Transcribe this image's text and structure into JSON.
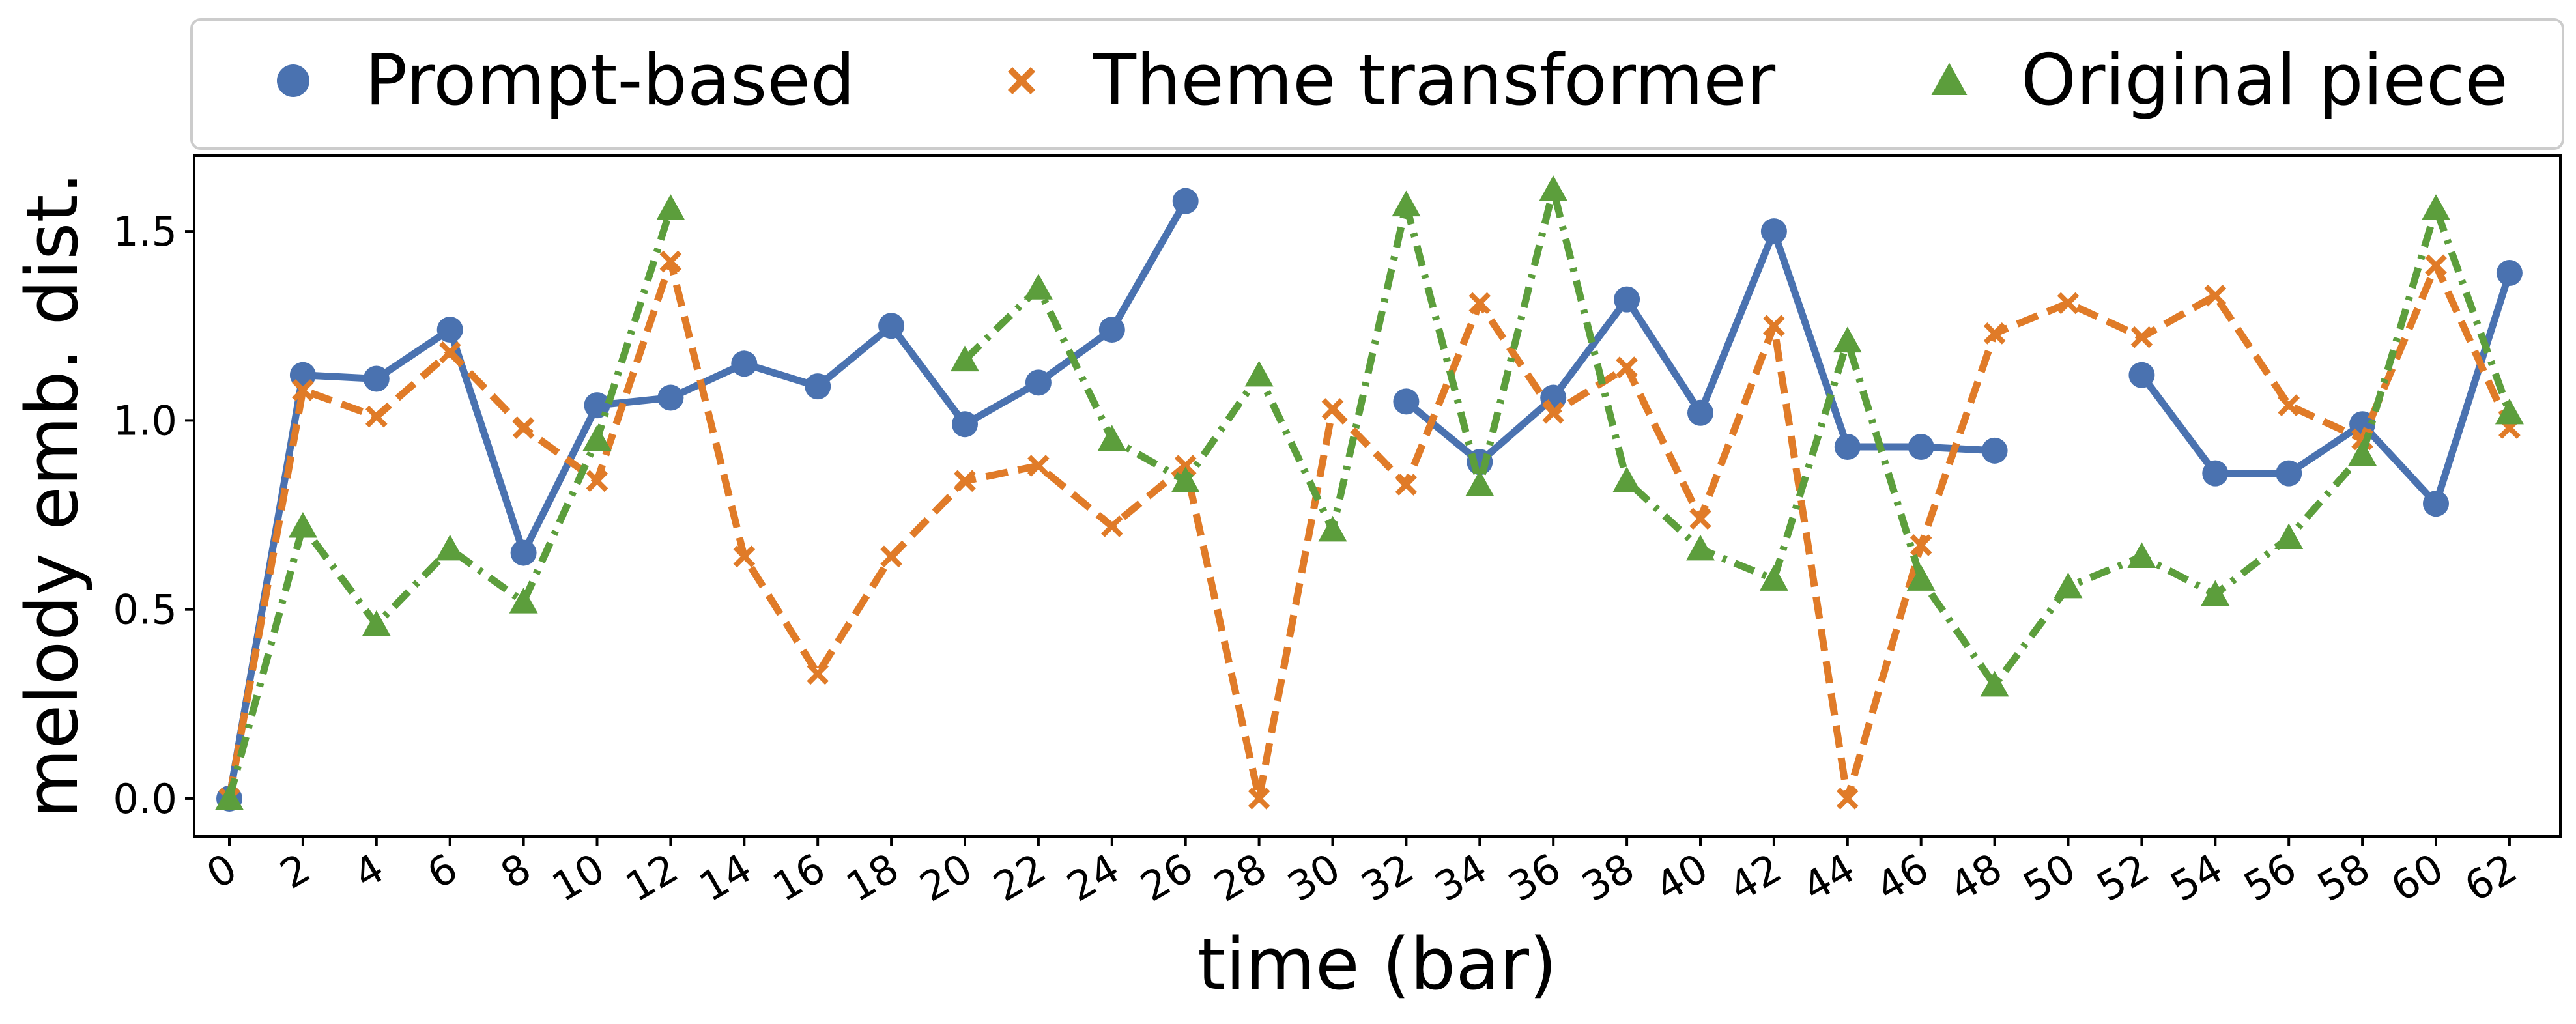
{
  "chart_data": {
    "type": "line",
    "xlabel": "time (bar)",
    "ylabel": "melody emb. dist.",
    "ylim": [
      -0.1,
      1.7
    ],
    "yticks": [
      0.0,
      0.5,
      1.0,
      1.5
    ],
    "ytick_labels": [
      "0.0",
      "0.5",
      "1.0",
      "1.5"
    ],
    "xtick_labels": [
      "0",
      "2",
      "4",
      "6",
      "8",
      "10",
      "12",
      "14",
      "16",
      "18",
      "20",
      "22",
      "24",
      "26",
      "28",
      "30",
      "32",
      "34",
      "36",
      "38",
      "40",
      "42",
      "44",
      "46",
      "48",
      "50",
      "52",
      "54",
      "56",
      "58",
      "60",
      "62"
    ],
    "grid": false,
    "legend_position": "top, outside plot area",
    "series": [
      {
        "name": "Prompt-based",
        "color": "#4a72b0",
        "marker": "circle",
        "line_style": "solid",
        "points": [
          [
            0,
            0.0
          ],
          [
            2,
            1.12
          ],
          [
            4,
            1.11
          ],
          [
            6,
            1.24
          ],
          [
            8,
            0.65
          ],
          [
            10,
            1.04
          ],
          [
            12,
            1.06
          ],
          [
            14,
            1.15
          ],
          [
            16,
            1.09
          ],
          [
            18,
            1.25
          ],
          [
            20,
            0.99
          ],
          [
            22,
            1.1
          ],
          [
            24,
            1.24
          ],
          [
            26,
            1.58
          ],
          [
            28,
            null
          ],
          [
            30,
            null
          ],
          [
            32,
            1.05
          ],
          [
            34,
            0.89
          ],
          [
            36,
            1.06
          ],
          [
            38,
            1.32
          ],
          [
            40,
            1.02
          ],
          [
            42,
            1.5
          ],
          [
            44,
            0.93
          ],
          [
            46,
            0.93
          ],
          [
            48,
            0.92
          ],
          [
            50,
            null
          ],
          [
            52,
            1.12
          ],
          [
            54,
            0.86
          ],
          [
            56,
            0.86
          ],
          [
            58,
            0.99
          ],
          [
            60,
            0.78
          ],
          [
            62,
            1.39
          ]
        ]
      },
      {
        "name": "Theme transformer",
        "color": "#e07b28",
        "marker": "x",
        "line_style": "dashed",
        "points": [
          [
            0,
            0.0
          ],
          [
            2,
            1.08
          ],
          [
            4,
            1.01
          ],
          [
            6,
            1.18
          ],
          [
            8,
            0.98
          ],
          [
            10,
            0.84
          ],
          [
            12,
            1.42
          ],
          [
            14,
            0.64
          ],
          [
            16,
            0.33
          ],
          [
            18,
            0.64
          ],
          [
            20,
            0.84
          ],
          [
            22,
            0.88
          ],
          [
            24,
            0.72
          ],
          [
            26,
            0.88
          ],
          [
            28,
            0.0
          ],
          [
            30,
            1.03
          ],
          [
            32,
            0.83
          ],
          [
            34,
            1.31
          ],
          [
            36,
            1.02
          ],
          [
            38,
            1.14
          ],
          [
            40,
            0.74
          ],
          [
            42,
            1.25
          ],
          [
            44,
            0.0
          ],
          [
            46,
            0.67
          ],
          [
            48,
            1.23
          ],
          [
            50,
            1.31
          ],
          [
            52,
            1.22
          ],
          [
            54,
            1.33
          ],
          [
            56,
            1.04
          ],
          [
            58,
            0.95
          ],
          [
            60,
            1.41
          ],
          [
            62,
            0.98
          ]
        ]
      },
      {
        "name": "Original piece",
        "color": "#5c9e3c",
        "marker": "triangle",
        "line_style": "dashdot",
        "points": [
          [
            0,
            0.0
          ],
          [
            2,
            0.72
          ],
          [
            4,
            0.46
          ],
          [
            6,
            0.66
          ],
          [
            8,
            0.52
          ],
          [
            10,
            0.95
          ],
          [
            12,
            1.56
          ],
          [
            14,
            null
          ],
          [
            16,
            null
          ],
          [
            18,
            null
          ],
          [
            20,
            1.16
          ],
          [
            22,
            1.35
          ],
          [
            24,
            0.95
          ],
          [
            26,
            0.84
          ],
          [
            28,
            1.12
          ],
          [
            30,
            0.71
          ],
          [
            32,
            1.57
          ],
          [
            34,
            0.83
          ],
          [
            36,
            1.61
          ],
          [
            38,
            0.84
          ],
          [
            40,
            0.66
          ],
          [
            42,
            0.58
          ],
          [
            44,
            1.21
          ],
          [
            46,
            0.58
          ],
          [
            48,
            0.3
          ],
          [
            50,
            0.56
          ],
          [
            52,
            0.64
          ],
          [
            54,
            0.54
          ],
          [
            56,
            0.69
          ],
          [
            58,
            0.91
          ],
          [
            60,
            1.56
          ],
          [
            62,
            1.02
          ]
        ]
      }
    ]
  }
}
